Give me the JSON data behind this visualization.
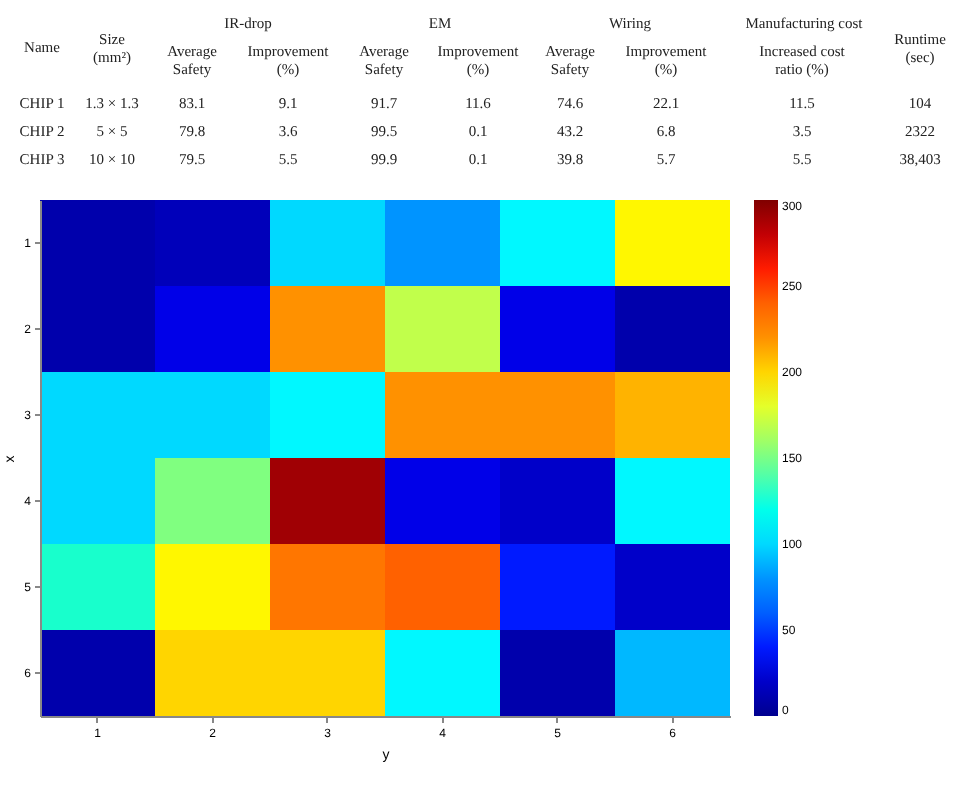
{
  "chart_data": [
    {
      "type": "other",
      "annotations": [
        "Name",
        "Size (mm²)",
        "IR-drop",
        "EM",
        "Wiring",
        "Manufacturing cost",
        "Runtime (sec)",
        "Average Safety",
        "Improvement (%)",
        "Average Safety",
        "Improvement (%)",
        "Average Safety",
        "Improvement (%)",
        "Increased cost ratio (%)",
        "CHIP 1",
        "1.3 × 1.3",
        "83.1",
        "9.1",
        "91.7",
        "11.6",
        "74.6",
        "22.1",
        "11.5",
        "104",
        "CHIP 2",
        "5 × 5",
        "79.8",
        "3.6",
        "99.5",
        "0.1",
        "43.2",
        "6.8",
        "3.5",
        "2322",
        "CHIP 3",
        "10 × 10",
        "79.5",
        "5.5",
        "99.9",
        "0.1",
        "39.8",
        "5.7",
        "5.5",
        "38,403"
      ]
    },
    {
      "type": "heatmap",
      "xlabel": "y",
      "ylabel": "x",
      "categories": [
        "1",
        "2",
        "3",
        "4",
        "5",
        "6"
      ],
      "y_categories": [
        "1",
        "2",
        "3",
        "4",
        "5",
        "6"
      ],
      "cells": [
        [
          10,
          15,
          100,
          80,
          110,
          190
        ],
        [
          10,
          30,
          220,
          170,
          30,
          10
        ],
        [
          100,
          100,
          110,
          220,
          220,
          210
        ],
        [
          100,
          150,
          290,
          30,
          20,
          110
        ],
        [
          130,
          190,
          230,
          240,
          40,
          20
        ],
        [
          10,
          200,
          200,
          110,
          10,
          90
        ]
      ],
      "clim": [
        0,
        300
      ],
      "cticks": [
        0,
        50,
        100,
        150,
        200,
        250,
        300
      ]
    }
  ]
}
